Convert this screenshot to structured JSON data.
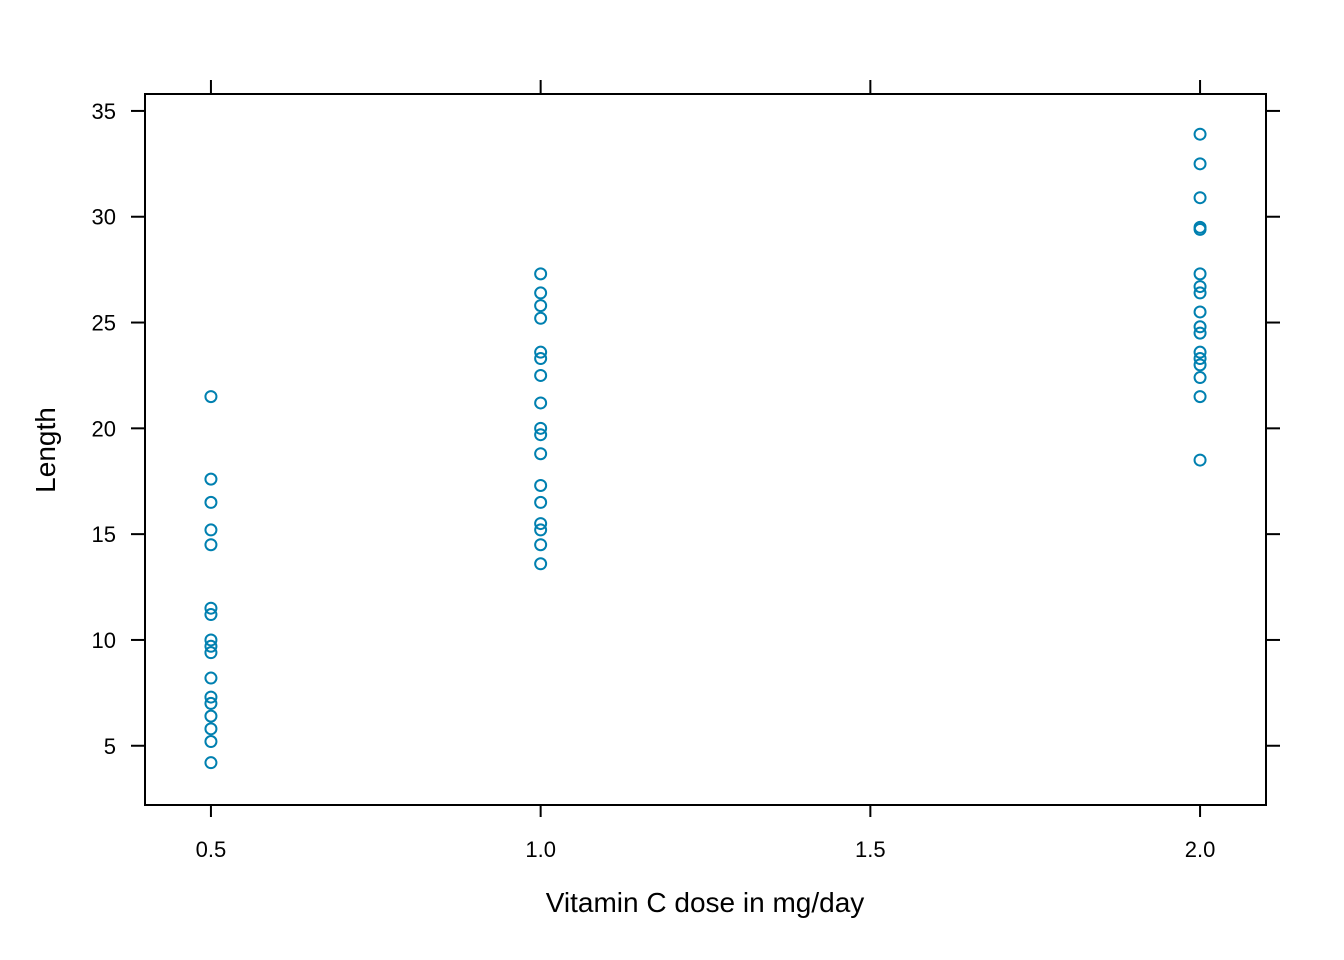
{
  "chart_data": {
    "type": "scatter",
    "title": "",
    "xlabel": "Vitamin C dose in mg/day",
    "ylabel": "Length",
    "xlim": [
      0.4,
      2.1
    ],
    "ylim": [
      2.2,
      35.8
    ],
    "x_ticks": [
      0.5,
      1.0,
      1.5,
      2.0
    ],
    "x_tick_labels": [
      "0.5",
      "1.0",
      "1.5",
      "2.0"
    ],
    "y_ticks": [
      5,
      10,
      15,
      20,
      25,
      30,
      35
    ],
    "y_tick_labels": [
      "5",
      "10",
      "15",
      "20",
      "25",
      "30",
      "35"
    ],
    "grid": false,
    "marker": "open-circle",
    "point_color": "#0080B0",
    "points": [
      {
        "x": 0.5,
        "y": 4.2
      },
      {
        "x": 0.5,
        "y": 5.2
      },
      {
        "x": 0.5,
        "y": 5.8
      },
      {
        "x": 0.5,
        "y": 6.4
      },
      {
        "x": 0.5,
        "y": 7.0
      },
      {
        "x": 0.5,
        "y": 7.3
      },
      {
        "x": 0.5,
        "y": 8.2
      },
      {
        "x": 0.5,
        "y": 9.4
      },
      {
        "x": 0.5,
        "y": 9.7
      },
      {
        "x": 0.5,
        "y": 10.0
      },
      {
        "x": 0.5,
        "y": 11.2
      },
      {
        "x": 0.5,
        "y": 11.5
      },
      {
        "x": 0.5,
        "y": 14.5
      },
      {
        "x": 0.5,
        "y": 15.2
      },
      {
        "x": 0.5,
        "y": 16.5
      },
      {
        "x": 0.5,
        "y": 17.6
      },
      {
        "x": 0.5,
        "y": 21.5
      },
      {
        "x": 1.0,
        "y": 13.6
      },
      {
        "x": 1.0,
        "y": 14.5
      },
      {
        "x": 1.0,
        "y": 15.2
      },
      {
        "x": 1.0,
        "y": 15.5
      },
      {
        "x": 1.0,
        "y": 16.5
      },
      {
        "x": 1.0,
        "y": 17.3
      },
      {
        "x": 1.0,
        "y": 18.8
      },
      {
        "x": 1.0,
        "y": 19.7
      },
      {
        "x": 1.0,
        "y": 20.0
      },
      {
        "x": 1.0,
        "y": 21.2
      },
      {
        "x": 1.0,
        "y": 22.5
      },
      {
        "x": 1.0,
        "y": 23.3
      },
      {
        "x": 1.0,
        "y": 23.6
      },
      {
        "x": 1.0,
        "y": 25.2
      },
      {
        "x": 1.0,
        "y": 25.8
      },
      {
        "x": 1.0,
        "y": 26.4
      },
      {
        "x": 1.0,
        "y": 27.3
      },
      {
        "x": 2.0,
        "y": 18.5
      },
      {
        "x": 2.0,
        "y": 21.5
      },
      {
        "x": 2.0,
        "y": 22.4
      },
      {
        "x": 2.0,
        "y": 23.0
      },
      {
        "x": 2.0,
        "y": 23.3
      },
      {
        "x": 2.0,
        "y": 23.6
      },
      {
        "x": 2.0,
        "y": 24.5
      },
      {
        "x": 2.0,
        "y": 24.8
      },
      {
        "x": 2.0,
        "y": 25.5
      },
      {
        "x": 2.0,
        "y": 26.4
      },
      {
        "x": 2.0,
        "y": 26.7
      },
      {
        "x": 2.0,
        "y": 27.3
      },
      {
        "x": 2.0,
        "y": 29.4
      },
      {
        "x": 2.0,
        "y": 29.5
      },
      {
        "x": 2.0,
        "y": 30.9
      },
      {
        "x": 2.0,
        "y": 32.5
      },
      {
        "x": 2.0,
        "y": 33.9
      }
    ]
  }
}
